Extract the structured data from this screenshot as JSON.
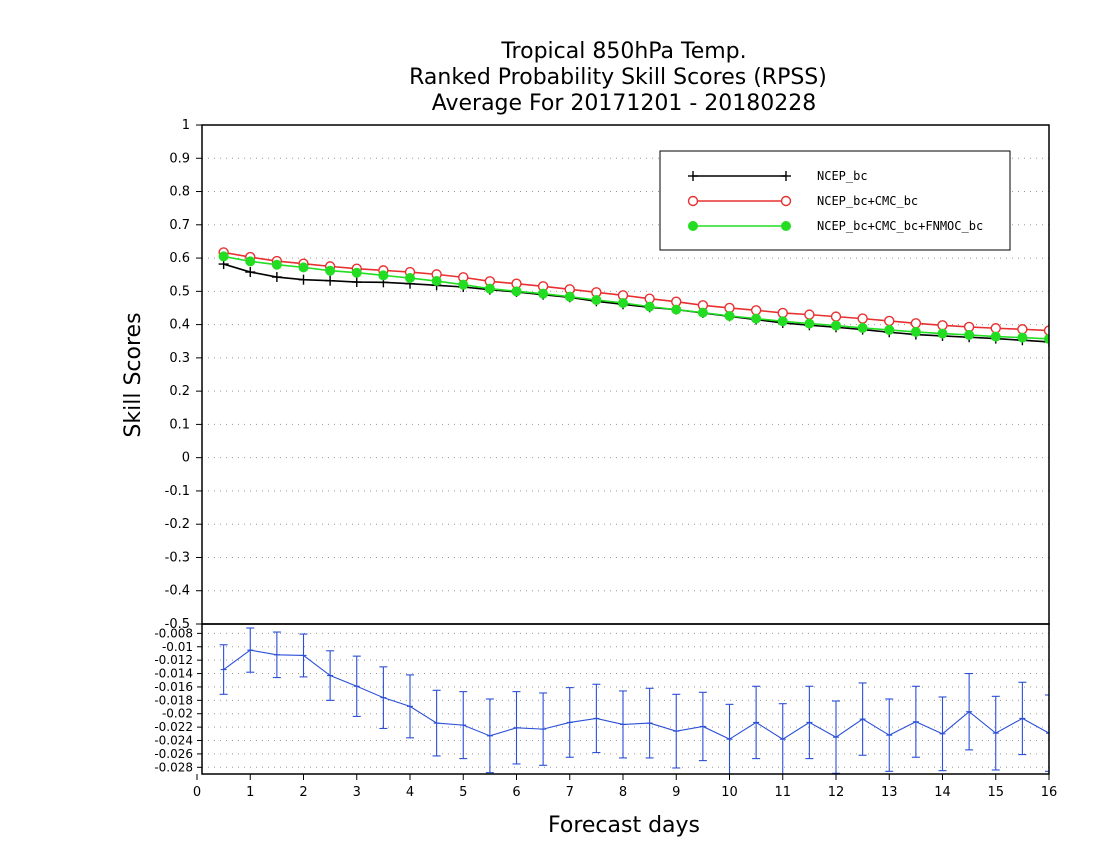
{
  "chart_data": [
    {
      "type": "line",
      "title": [
        "Tropical 850hPa Temp.",
        "Ranked Probability Skill Scores (RPSS)",
        "Average For 20171201 - 20180228"
      ],
      "ylabel": "Skill Scores",
      "xlabel": "Forecast days",
      "xlim": [
        0,
        16
      ],
      "ylim": [
        -0.5,
        1
      ],
      "yticks": [
        1,
        0.9,
        0.8,
        0.7,
        0.6,
        0.5,
        0.4,
        0.3,
        0.2,
        0.1,
        0,
        -0.1,
        -0.2,
        -0.3,
        -0.4,
        -0.5
      ],
      "ytick_labels": [
        "1",
        "0.9",
        "0.8",
        "0.7",
        "0.6",
        "0.5",
        "0.4",
        "0.3",
        "0.2",
        "0.1",
        "0",
        "-0.1",
        "-0.2",
        "-0.3",
        "-0.4",
        "-0.5"
      ],
      "grid": true,
      "legend": "top-right",
      "x": [
        0.5,
        1,
        1.5,
        2,
        2.5,
        3,
        3.5,
        4,
        4.5,
        5,
        5.5,
        6,
        6.5,
        7,
        7.5,
        8,
        8.5,
        9,
        9.5,
        10,
        10.5,
        11,
        11.5,
        12,
        12.5,
        13,
        13.5,
        14,
        14.5,
        15,
        15.5,
        16
      ],
      "series": [
        {
          "name": "NCEP_bc",
          "color": "#000000",
          "marker": "plus",
          "values": [
            0.582,
            0.558,
            0.543,
            0.535,
            0.532,
            0.528,
            0.527,
            0.523,
            0.518,
            0.513,
            0.505,
            0.498,
            0.49,
            0.482,
            0.47,
            0.461,
            0.452,
            0.445,
            0.435,
            0.425,
            0.415,
            0.405,
            0.398,
            0.392,
            0.385,
            0.377,
            0.37,
            0.366,
            0.362,
            0.358,
            0.353,
            0.348
          ]
        },
        {
          "name": "NCEP_bc+CMC_bc",
          "color": "#e83030",
          "marker": "open-circle",
          "values": [
            0.617,
            0.603,
            0.591,
            0.583,
            0.575,
            0.568,
            0.563,
            0.558,
            0.551,
            0.542,
            0.53,
            0.523,
            0.515,
            0.506,
            0.497,
            0.488,
            0.478,
            0.469,
            0.458,
            0.45,
            0.443,
            0.435,
            0.43,
            0.424,
            0.418,
            0.411,
            0.404,
            0.398,
            0.393,
            0.389,
            0.386,
            0.382
          ]
        },
        {
          "name": "NCEP_bc+CMC_bc+FNMOC_bc",
          "color": "#22dd22",
          "marker": "filled-circle",
          "values": [
            0.605,
            0.59,
            0.58,
            0.572,
            0.562,
            0.556,
            0.548,
            0.54,
            0.531,
            0.52,
            0.508,
            0.5,
            0.493,
            0.484,
            0.474,
            0.465,
            0.454,
            0.445,
            0.436,
            0.426,
            0.418,
            0.41,
            0.403,
            0.397,
            0.39,
            0.384,
            0.378,
            0.373,
            0.369,
            0.364,
            0.361,
            0.357
          ]
        }
      ]
    },
    {
      "type": "line",
      "xlim": [
        0,
        16
      ],
      "ylim": [
        -0.029,
        -0.0066
      ],
      "xticks": [
        0,
        1,
        2,
        3,
        4,
        5,
        6,
        7,
        8,
        9,
        10,
        11,
        12,
        13,
        14,
        15,
        16
      ],
      "xtick_labels": [
        "0",
        "1",
        "2",
        "3",
        "4",
        "5",
        "6",
        "7",
        "8",
        "9",
        "10",
        "11",
        "12",
        "13",
        "14",
        "15",
        "16"
      ],
      "yticks": [
        -0.008,
        -0.01,
        -0.012,
        -0.014,
        -0.016,
        -0.018,
        -0.02,
        -0.022,
        -0.024,
        -0.026,
        -0.028
      ],
      "ytick_labels": [
        "-0.008",
        "-0.01",
        "-0.012",
        "-0.014",
        "-0.016",
        "-0.018",
        "-0.02",
        "-0.022",
        "-0.024",
        "-0.026",
        "-0.028"
      ],
      "grid": true,
      "series": [
        {
          "color": "#2a4fd8",
          "error_bars": true,
          "x": [
            0.5,
            1,
            1.5,
            2,
            2.5,
            3,
            3.5,
            4,
            4.5,
            5,
            5.5,
            6,
            6.5,
            7,
            7.5,
            8,
            8.5,
            9,
            9.5,
            10,
            10.5,
            11,
            11.5,
            12,
            12.5,
            13,
            13.5,
            14,
            14.5,
            15,
            15.5,
            16
          ],
          "values": [
            -0.0134,
            -0.0105,
            -0.0112,
            -0.0113,
            -0.0143,
            -0.0159,
            -0.0176,
            -0.0189,
            -0.0214,
            -0.0217,
            -0.0233,
            -0.0221,
            -0.0223,
            -0.0213,
            -0.0207,
            -0.0216,
            -0.0214,
            -0.0226,
            -0.0219,
            -0.0238,
            -0.0213,
            -0.0238,
            -0.0213,
            -0.0235,
            -0.0208,
            -0.0232,
            -0.0212,
            -0.023,
            -0.0197,
            -0.0229,
            -0.0207,
            -0.0229
          ],
          "lower": [
            -0.0171,
            -0.0138,
            -0.0146,
            -0.0145,
            -0.018,
            -0.0204,
            -0.0222,
            -0.0236,
            -0.0263,
            -0.0267,
            -0.0288,
            -0.0275,
            -0.0277,
            -0.0265,
            -0.0258,
            -0.0266,
            -0.0266,
            -0.0281,
            -0.027,
            -0.029,
            -0.0267,
            -0.0291,
            -0.0267,
            -0.0289,
            -0.0262,
            -0.0286,
            -0.0265,
            -0.0285,
            -0.0254,
            -0.0284,
            -0.0261,
            -0.0286
          ],
          "upper": [
            -0.0097,
            -0.0072,
            -0.0078,
            -0.0081,
            -0.0106,
            -0.0114,
            -0.013,
            -0.0142,
            -0.0165,
            -0.0167,
            -0.0178,
            -0.0167,
            -0.0169,
            -0.0161,
            -0.0156,
            -0.0166,
            -0.0162,
            -0.0171,
            -0.0168,
            -0.0186,
            -0.0159,
            -0.0185,
            -0.0159,
            -0.0181,
            -0.0154,
            -0.0178,
            -0.0159,
            -0.0175,
            -0.014,
            -0.0174,
            -0.0153,
            -0.0172
          ]
        }
      ]
    }
  ]
}
